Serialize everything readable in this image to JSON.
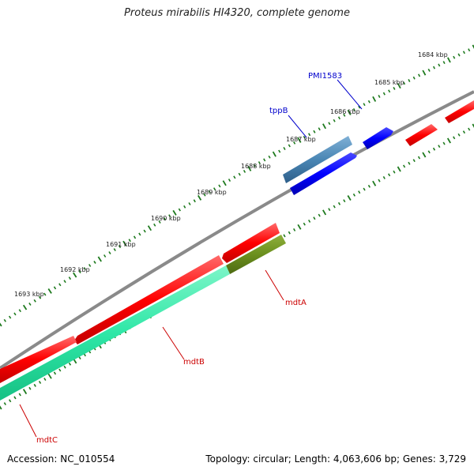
{
  "title": "Proteus mirabilis HI4320, complete genome",
  "footer": {
    "accession": "Accession: NC_010554",
    "summary": "Topology: circular; Length: 4,063,606 bp; Genes: 3,729"
  },
  "colors": {
    "backbone": "#8a8a8a",
    "tick": "#1e7a1e",
    "forward_gene": "#0000ff",
    "reverse_gene": "#ff0000",
    "rna_gene": "#4a86b4",
    "overlap_gene": "#6b8f1e",
    "cds_band": "#2fe7a7",
    "forward_label": "#0000cc",
    "reverse_label": "#cc0000"
  },
  "kbp_labels": [
    "1684 kbp",
    "1685 kbp",
    "1686 kbp",
    "1687 kbp",
    "1688 kbp",
    "1689 kbp",
    "1690 kbp",
    "1691 kbp",
    "1692 kbp",
    "1693 kbp"
  ],
  "genes": [
    {
      "name": "PMI1583",
      "strand": "forward"
    },
    {
      "name": "tppB",
      "strand": "forward"
    },
    {
      "name": "mdtA",
      "strand": "reverse"
    },
    {
      "name": "mdtB",
      "strand": "reverse"
    },
    {
      "name": "mdtC",
      "strand": "reverse"
    }
  ]
}
